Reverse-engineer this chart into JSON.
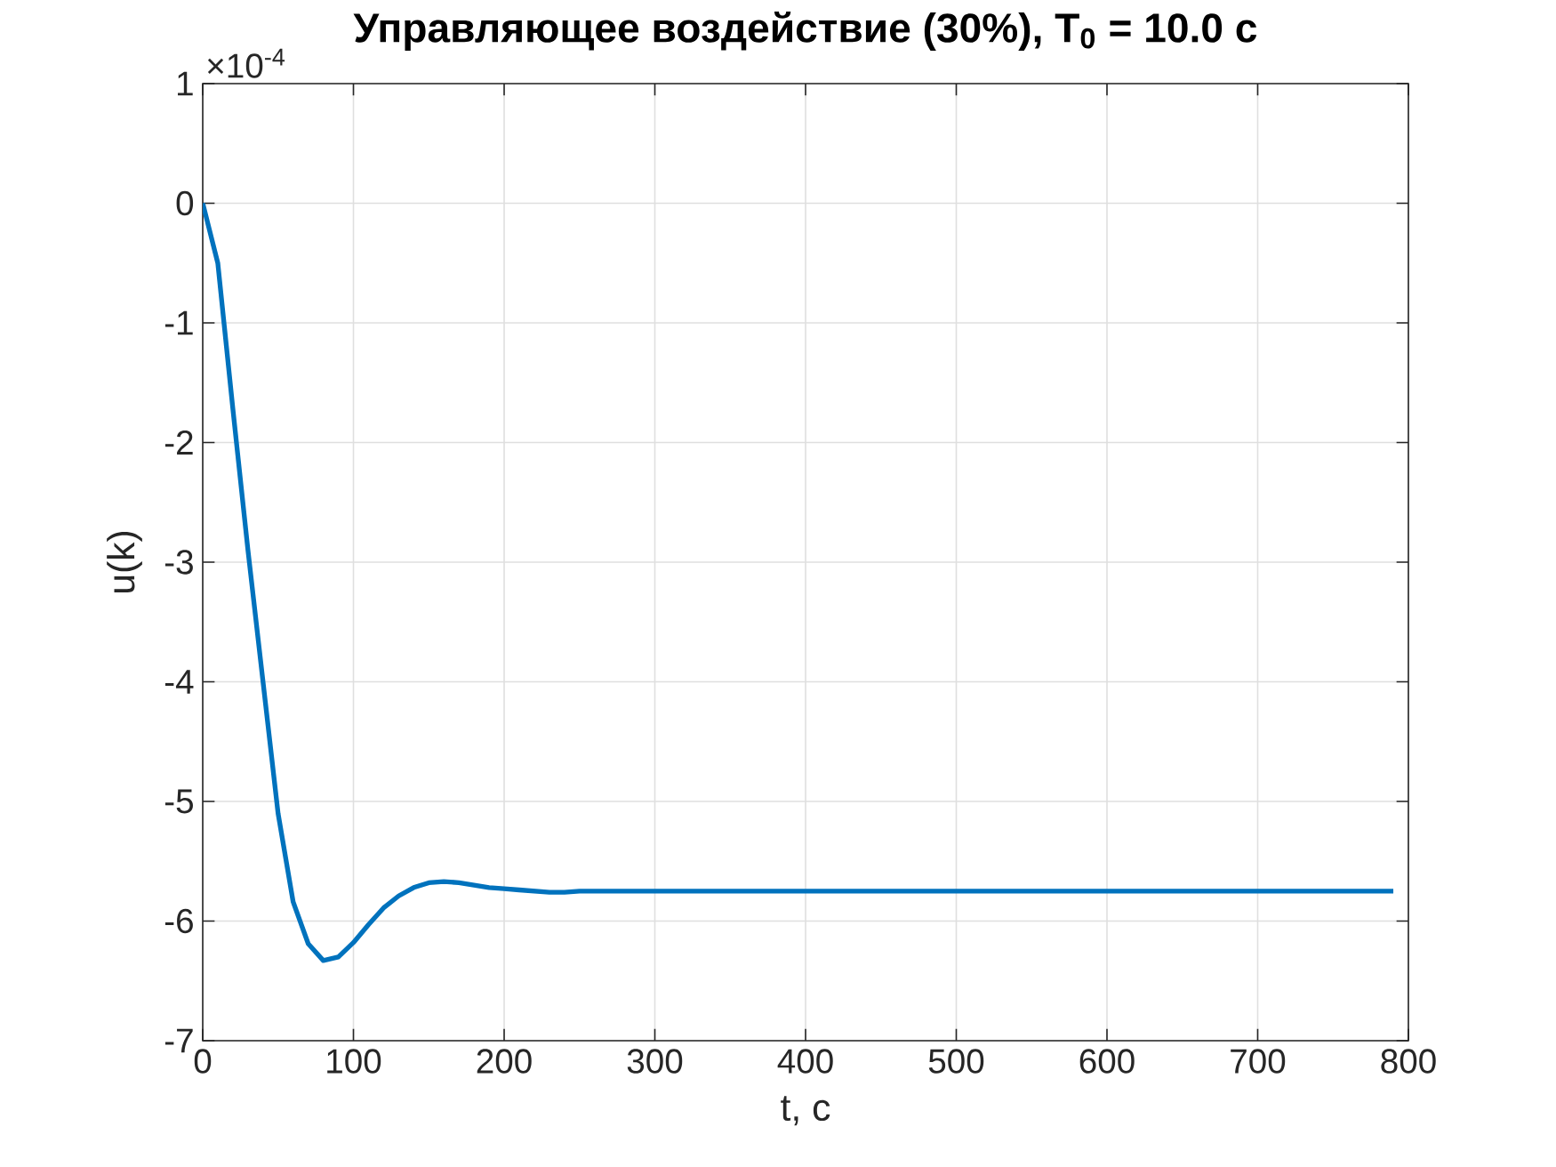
{
  "chart_data": {
    "type": "line",
    "title": "Управляющее воздействие (30%), T$_{0}$ = 10.0 с",
    "xlabel": "t, с",
    "ylabel": "u(k)",
    "annotations": [
      "×10$^{-4}$"
    ],
    "x": [
      0,
      10,
      20,
      30,
      40,
      50,
      60,
      70,
      80,
      90,
      100,
      110,
      120,
      130,
      140,
      150,
      160,
      170,
      180,
      190,
      200,
      210,
      220,
      230,
      240,
      250,
      260,
      790
    ],
    "series": [
      {
        "color": "#0072bd",
        "values": [
          0,
          -0.5,
          -1.72,
          -2.9,
          -4.0,
          -5.1,
          -5.84,
          -6.19,
          -6.33,
          -6.3,
          -6.18,
          -6.03,
          -5.89,
          -5.79,
          -5.72,
          -5.68,
          -5.67,
          -5.68,
          -5.7,
          -5.72,
          -5.73,
          -5.74,
          -5.75,
          -5.76,
          -5.76,
          -5.75,
          -5.75,
          -5.75
        ]
      }
    ],
    "xlim": [
      0,
      800
    ],
    "ylim": [
      -7,
      1
    ],
    "xticks": [
      0,
      100,
      200,
      300,
      400,
      500,
      600,
      700,
      800
    ],
    "yticks": [
      -7,
      -6,
      -5,
      -4,
      -3,
      -2,
      -1,
      0,
      1
    ],
    "grid": true
  }
}
